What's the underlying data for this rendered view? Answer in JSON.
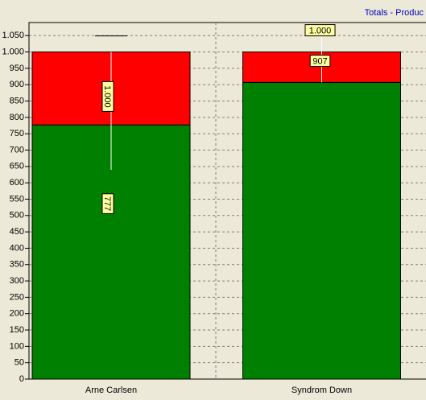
{
  "chart_data": {
    "type": "stacked_bar",
    "title": "Totals - Produc",
    "categories": [
      "Arne Carlsen",
      "Syndrom Down"
    ],
    "series": [
      {
        "color": "#008000",
        "values": [
          777,
          907
        ]
      },
      {
        "color": "#ff0000",
        "values": [
          223,
          93
        ]
      }
    ],
    "bar_labels": [
      [
        "777",
        "1.000"
      ],
      [
        "907",
        "1.000"
      ]
    ],
    "ylim": [
      0,
      1090
    ],
    "yticks": [
      0,
      50,
      100,
      150,
      200,
      250,
      300,
      350,
      400,
      450,
      500,
      550,
      600,
      650,
      700,
      750,
      800,
      850,
      900,
      950,
      {
        "value": 1000,
        "label": "1.000"
      },
      {
        "value": 1050,
        "label": "1.050"
      }
    ],
    "grid": true
  }
}
